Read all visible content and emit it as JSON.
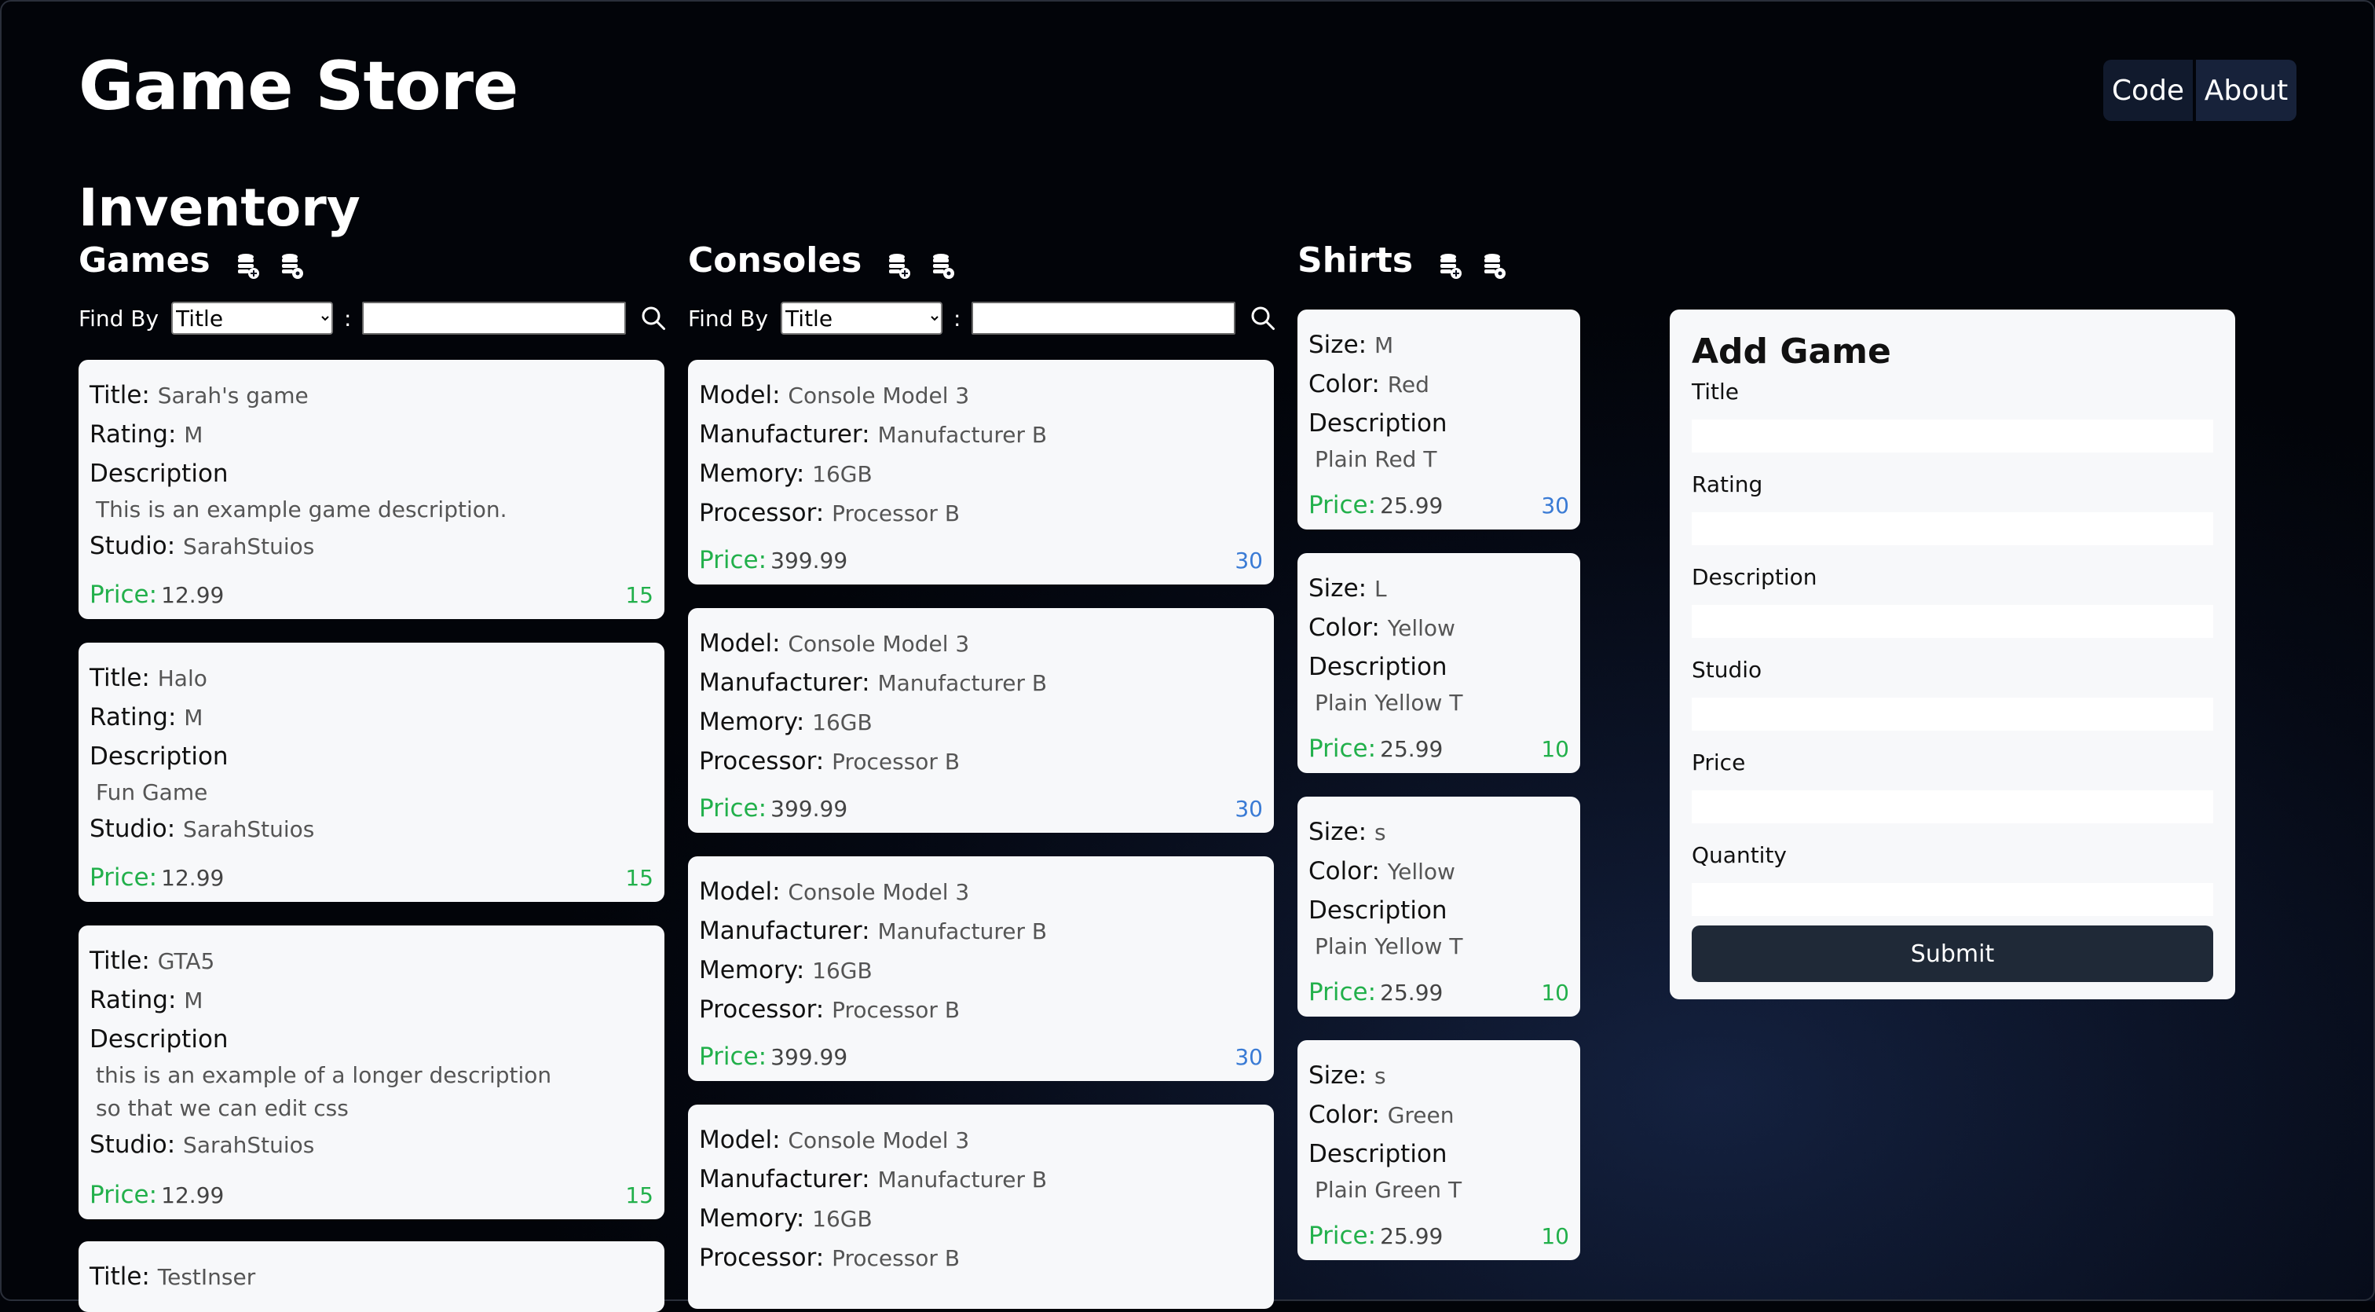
{
  "header": {
    "title": "Game Store",
    "nav": {
      "code": "Code",
      "about": "About"
    }
  },
  "inventory_title": "Inventory",
  "find_by_label": "Find By",
  "find_by_option": "Title",
  "colon": ":",
  "games": {
    "title": "Games",
    "items": [
      {
        "title_label": "Title:",
        "title": "Sarah's game",
        "rating_label": "Rating:",
        "rating": "M",
        "desc_label": "Description",
        "desc1": "This is an example game description.",
        "desc2": "",
        "studio_label": "Studio:",
        "studio": "SarahStuios",
        "price_label": "Price:",
        "price": "12.99",
        "qty": "15"
      },
      {
        "title_label": "Title:",
        "title": "Halo",
        "rating_label": "Rating:",
        "rating": "M",
        "desc_label": "Description",
        "desc1": "Fun Game",
        "desc2": "",
        "studio_label": "Studio:",
        "studio": "SarahStuios",
        "price_label": "Price:",
        "price": "12.99",
        "qty": "15"
      },
      {
        "title_label": "Title:",
        "title": "GTA5",
        "rating_label": "Rating:",
        "rating": "M",
        "desc_label": "Description",
        "desc1": "this is an example of a longer description",
        "desc2": "so that we can edit css",
        "studio_label": "Studio:",
        "studio": "SarahStuios",
        "price_label": "Price:",
        "price": "12.99",
        "qty": "15"
      },
      {
        "title_label": "Title:",
        "title": "TestInser"
      }
    ]
  },
  "consoles": {
    "title": "Consoles",
    "items": [
      {
        "model_label": "Model:",
        "model": "Console Model 3",
        "mfr_label": "Manufacturer:",
        "mfr": "Manufacturer B",
        "mem_label": "Memory:",
        "mem": "16GB",
        "proc_label": "Processor:",
        "proc": "Processor B",
        "price_label": "Price:",
        "price": "399.99",
        "qty": "30"
      },
      {
        "model_label": "Model:",
        "model": "Console Model 3",
        "mfr_label": "Manufacturer:",
        "mfr": "Manufacturer B",
        "mem_label": "Memory:",
        "mem": "16GB",
        "proc_label": "Processor:",
        "proc": "Processor B",
        "price_label": "Price:",
        "price": "399.99",
        "qty": "30"
      },
      {
        "model_label": "Model:",
        "model": "Console Model 3",
        "mfr_label": "Manufacturer:",
        "mfr": "Manufacturer B",
        "mem_label": "Memory:",
        "mem": "16GB",
        "proc_label": "Processor:",
        "proc": "Processor B",
        "price_label": "Price:",
        "price": "399.99",
        "qty": "30"
      },
      {
        "model_label": "Model:",
        "model": "Console Model 3",
        "mfr_label": "Manufacturer:",
        "mfr": "Manufacturer B",
        "mem_label": "Memory:",
        "mem": "16GB",
        "proc_label": "Processor:",
        "proc": "Processor B"
      }
    ]
  },
  "shirts": {
    "title": "Shirts",
    "items": [
      {
        "size_label": "Size:",
        "size": "M",
        "color_label": "Color:",
        "color": "Red",
        "desc_label": "Description",
        "desc": "Plain Red T",
        "price_label": "Price:",
        "price": "25.99",
        "qty": "30"
      },
      {
        "size_label": "Size:",
        "size": "L",
        "color_label": "Color:",
        "color": "Yellow",
        "desc_label": "Description",
        "desc": "Plain Yellow T",
        "price_label": "Price:",
        "price": "25.99",
        "qty": "10"
      },
      {
        "size_label": "Size:",
        "size": "s",
        "color_label": "Color:",
        "color": "Yellow",
        "desc_label": "Description",
        "desc": "Plain Yellow T",
        "price_label": "Price:",
        "price": "25.99",
        "qty": "10"
      },
      {
        "size_label": "Size:",
        "size": "s",
        "color_label": "Color:",
        "color": "Green",
        "desc_label": "Description",
        "desc": "Plain Green T",
        "price_label": "Price:",
        "price": "25.99",
        "qty": "10"
      }
    ]
  },
  "form": {
    "title": "Add Game",
    "fields": [
      "Title",
      "Rating",
      "Description",
      "Studio",
      "Price",
      "Quantity"
    ],
    "submit": "Submit"
  },
  "colors": {
    "price_green": "#22b04b",
    "qty_blue": "#3a7bd5",
    "button_dark": "#1f2937"
  }
}
